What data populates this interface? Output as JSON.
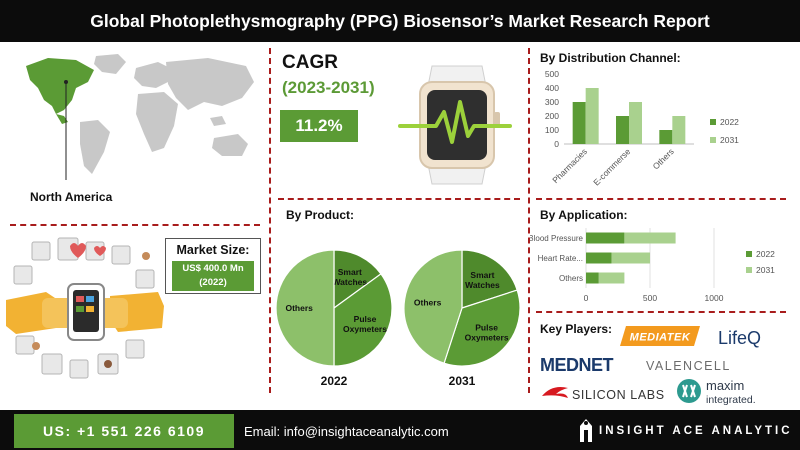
{
  "header": {
    "title": "Global Photoplethysmography (PPG) Biosensor’s Market Research Report"
  },
  "region": {
    "label": "North America"
  },
  "market_size": {
    "title": "Market Size:",
    "value_line1": "US$ 400.0 Mn",
    "value_line2": "(2022)"
  },
  "cagr": {
    "title": "CAGR",
    "period": "(2023-2031)",
    "value": "11.2%"
  },
  "colors": {
    "dark_green": "#5b9b35",
    "light_green": "#a9d18e",
    "mid_green": "#6aa84f",
    "accent_red": "#a81c1c",
    "black": "#0c0c0c"
  },
  "chart_data": [
    {
      "type": "bar",
      "title": "By Distribution Channel:",
      "categories": [
        "Pharmacies",
        "E-commerse",
        "Others"
      ],
      "series": [
        {
          "name": "2022",
          "values": [
            300,
            200,
            100
          ],
          "color": "#5b9b35"
        },
        {
          "name": "2031",
          "values": [
            400,
            300,
            200
          ],
          "color": "#a9d18e"
        }
      ],
      "ylim": [
        0,
        500
      ],
      "yticks": [
        0,
        100,
        200,
        300,
        400,
        500
      ],
      "legend": "right",
      "grid": false
    },
    {
      "type": "bar",
      "orientation": "horizontal",
      "stacked": true,
      "title": "By  Application:",
      "categories": [
        "Blood Pressure",
        "Heart Rate...",
        "Others"
      ],
      "series": [
        {
          "name": "2022",
          "values": [
            300,
            200,
            100
          ],
          "color": "#5b9b35"
        },
        {
          "name": "2031",
          "values": [
            400,
            300,
            200
          ],
          "color": "#a9d18e"
        }
      ],
      "xlim": [
        0,
        1000
      ],
      "xticks": [
        0,
        500,
        1000
      ],
      "legend": "right",
      "grid": true
    },
    {
      "type": "pie",
      "title": "By Product:",
      "label": "2022",
      "slices": [
        {
          "name": "Smart Watches",
          "value": 15,
          "color": "#4f8a2c"
        },
        {
          "name": "Pulse Oxymeters",
          "value": 35,
          "color": "#5b9b35"
        },
        {
          "name": "Others",
          "value": 50,
          "color": "#8dc06a"
        }
      ]
    },
    {
      "type": "pie",
      "label": "2031",
      "slices": [
        {
          "name": "Smart Watches",
          "value": 20,
          "color": "#4f8a2c"
        },
        {
          "name": "Pulse Oxymeters",
          "value": 35,
          "color": "#5b9b35"
        },
        {
          "name": "Others",
          "value": 45,
          "color": "#8dc06a"
        }
      ]
    }
  ],
  "key_players": {
    "title": "Key Players:",
    "items": [
      {
        "name": "MEDIATEK"
      },
      {
        "name": "LifeQ"
      },
      {
        "name": "MEDNET"
      },
      {
        "name": "VALENCELL"
      },
      {
        "name": "SILICON LABS"
      },
      {
        "name": "maxim",
        "sub": "integrated."
      }
    ]
  },
  "footer": {
    "phone": "US: +1 551 226 6109",
    "email": "Email: info@insightaceanalytic.com",
    "brand": "INSIGHT ACE ANALYTIC"
  }
}
